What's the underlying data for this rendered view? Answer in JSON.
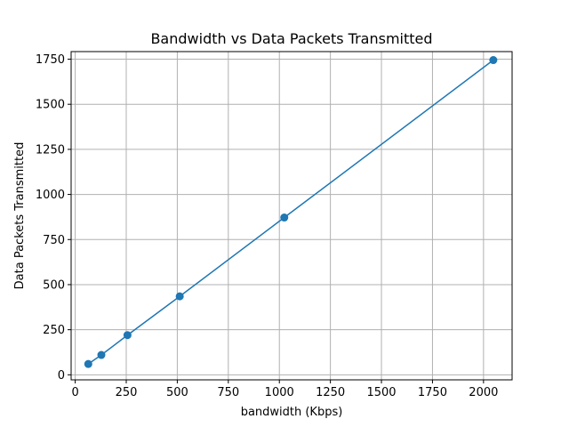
{
  "chart_data": {
    "type": "line",
    "title": "Bandwidth vs Data Packets Transmitted",
    "xlabel": "bandwidth (Kbps)",
    "ylabel": "Data Packets Transmitted",
    "xlim": [
      -20,
      2140
    ],
    "ylim": [
      -28,
      1792
    ],
    "x_ticks": [
      0,
      250,
      500,
      750,
      1000,
      1250,
      1500,
      1750,
      2000
    ],
    "y_ticks": [
      0,
      250,
      500,
      750,
      1000,
      1250,
      1500,
      1750
    ],
    "grid": true,
    "marker": "circle",
    "series": [
      {
        "color": "#1f77b4",
        "x": [
          64,
          128,
          256,
          512,
          1024,
          2048
        ],
        "y": [
          60,
          110,
          220,
          435,
          872,
          1745
        ]
      }
    ]
  }
}
